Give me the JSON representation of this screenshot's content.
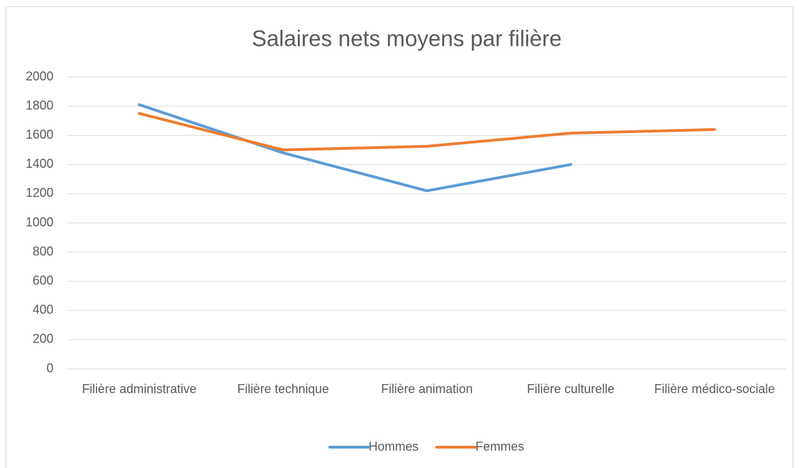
{
  "chart_data": {
    "type": "line",
    "title": "Salaires nets moyens par filière",
    "categories": [
      "Filière administrative",
      "Filière technique",
      "Filière animation",
      "Filière culturelle",
      "Filière médico-sociale"
    ],
    "series": [
      {
        "name": "Hommes",
        "color": "#5b9bd5",
        "values": [
          1810,
          1480,
          1220,
          1400,
          null
        ]
      },
      {
        "name": "Femmes",
        "color": "#ed7d31",
        "values": [
          1750,
          1500,
          1525,
          1615,
          1640
        ]
      }
    ],
    "ylim": [
      0,
      2000
    ],
    "yticks": [
      0,
      200,
      400,
      600,
      800,
      1000,
      1200,
      1400,
      1600,
      1800,
      2000
    ],
    "grid": true,
    "legend": "bottom"
  }
}
